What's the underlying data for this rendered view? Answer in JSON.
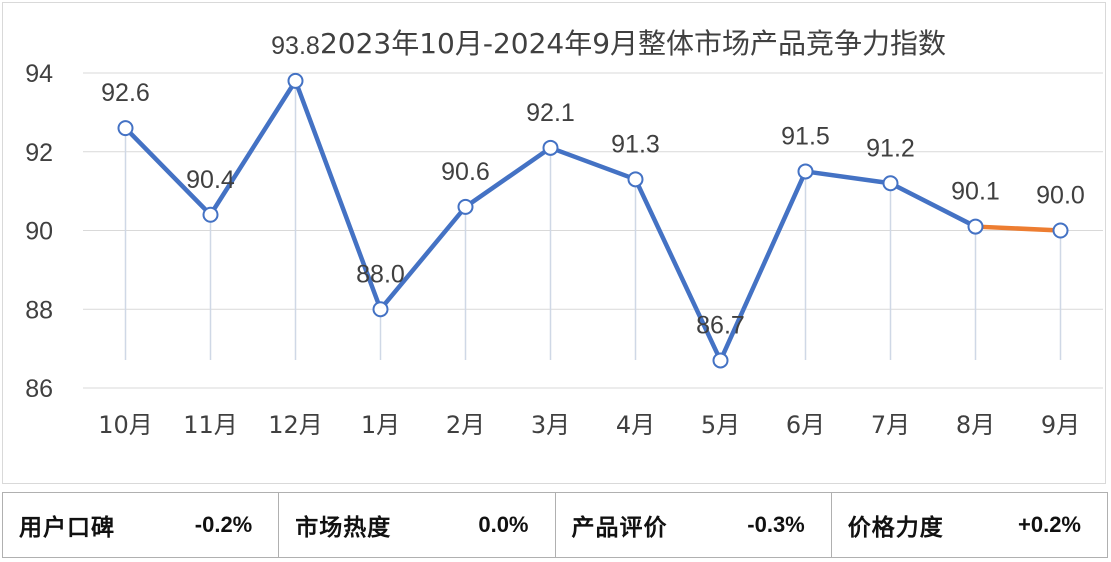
{
  "chart_data": {
    "type": "line",
    "title": "2023年10月-2024年9月整体市场产品竞争力指数",
    "categories": [
      "10月",
      "11月",
      "12月",
      "1月",
      "2月",
      "3月",
      "4月",
      "5月",
      "6月",
      "7月",
      "8月",
      "9月"
    ],
    "values": [
      92.6,
      90.4,
      93.8,
      88.0,
      90.6,
      92.1,
      91.3,
      86.7,
      91.5,
      91.2,
      90.1,
      90.0
    ],
    "value_labels": [
      "92.6",
      "90.4",
      "93.8",
      "88.0",
      "90.6",
      "92.1",
      "91.3",
      "86.7",
      "91.5",
      "91.2",
      "90.1",
      "90.0"
    ],
    "y_ticks": [
      "86",
      "88",
      "90",
      "92",
      "94"
    ],
    "ylim": [
      86,
      94
    ],
    "xlabel": "",
    "ylabel": "",
    "grid": "horizontal",
    "colors": {
      "line": "#4472C4",
      "last_segment": "#ED7D31",
      "drop_line": "#cfd8e6",
      "grid": "#d9d9d9",
      "text": "#404040"
    }
  },
  "stats": [
    {
      "label": "用户口碑",
      "value": "-0.2%"
    },
    {
      "label": "市场热度",
      "value": "0.0%"
    },
    {
      "label": "产品评价",
      "value": "-0.3%"
    },
    {
      "label": "价格力度",
      "value": "+0.2%"
    }
  ]
}
